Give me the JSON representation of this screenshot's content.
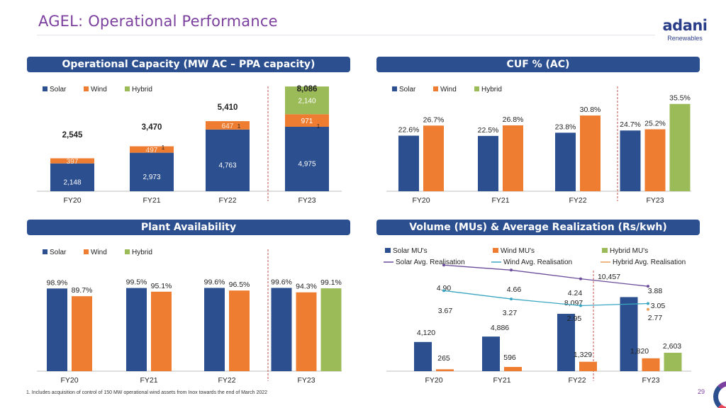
{
  "page": {
    "title": "AGEL: Operational Performance",
    "logo_brand": "adani",
    "logo_sub": "Renewables",
    "footnote": "1. Includes acquisition of control of 150 MW operational wind assets from Inox towards the end of March 2022",
    "page_number": "29"
  },
  "colors": {
    "solar": "#2c4f8f",
    "wind": "#ee7d31",
    "hybrid": "#9bbb59",
    "header": "#2c4f8f",
    "title": "#7b3f9e"
  },
  "legend_labels": [
    "Solar",
    "Wind",
    "Hybrid"
  ],
  "chart_data": [
    {
      "id": "capacity",
      "header": "Operational Capacity (MW AC – PPA capacity)",
      "type": "bar",
      "stacked": true,
      "categories": [
        "FY20",
        "FY21",
        "FY22",
        "FY23"
      ],
      "series": [
        {
          "name": "Solar",
          "values": [
            2148,
            2973,
            4763,
            4975
          ],
          "labels": [
            "2,148",
            "2,973",
            "4,763",
            "4,975"
          ]
        },
        {
          "name": "Wind",
          "values": [
            397,
            497,
            647,
            971
          ],
          "labels": [
            "397",
            "497",
            "647",
            "971"
          ]
        },
        {
          "name": "Hybrid",
          "values": [
            0,
            0,
            0,
            2140
          ],
          "labels": [
            "",
            "",
            "",
            "2,140"
          ]
        }
      ],
      "totals": [
        "2,545",
        "3,470",
        "5,410",
        "8,086"
      ],
      "footnote_markers": [
        "",
        "1",
        "1",
        "1"
      ],
      "legend": "top-left"
    },
    {
      "id": "cuf",
      "header": "CUF % (AC)",
      "type": "bar",
      "categories": [
        "FY20",
        "FY21",
        "FY22",
        "FY23"
      ],
      "series": [
        {
          "name": "Solar",
          "values": [
            22.6,
            22.5,
            23.8,
            24.7
          ],
          "labels": [
            "22.6%",
            "22.5%",
            "23.8%",
            "24.7%"
          ]
        },
        {
          "name": "Wind",
          "values": [
            26.7,
            26.8,
            30.8,
            25.2
          ],
          "labels": [
            "26.7%",
            "26.8%",
            "30.8%",
            "25.2%"
          ]
        },
        {
          "name": "Hybrid",
          "values": [
            null,
            null,
            null,
            35.5
          ],
          "labels": [
            "",
            "",
            "",
            "35.5%"
          ]
        }
      ],
      "legend": "top-left"
    },
    {
      "id": "availability",
      "header": "Plant Availability",
      "type": "bar",
      "categories": [
        "FY20",
        "FY21",
        "FY22",
        "FY23"
      ],
      "series": [
        {
          "name": "Solar",
          "values": [
            98.9,
            99.5,
            99.6,
            99.6
          ],
          "labels": [
            "98.9%",
            "99.5%",
            "99.6%",
            "99.6%"
          ]
        },
        {
          "name": "Wind",
          "values": [
            89.7,
            95.1,
            96.5,
            94.3
          ],
          "labels": [
            "89.7%",
            "95.1%",
            "96.5%",
            "94.3%"
          ]
        },
        {
          "name": "Hybrid",
          "values": [
            null,
            null,
            null,
            99.1
          ],
          "labels": [
            "",
            "",
            "",
            "99.1%"
          ]
        }
      ],
      "legend": "top-left"
    },
    {
      "id": "volume",
      "header": "Volume (MUs) & Average Realization (Rs/kwh)",
      "type": "bar",
      "categories": [
        "FY20",
        "FY21",
        "FY22",
        "FY23"
      ],
      "series": [
        {
          "name": "Solar MU's",
          "values": [
            4120,
            4886,
            8097,
            10457
          ],
          "labels": [
            "4,120",
            "4,886",
            "8,097",
            "10,457"
          ]
        },
        {
          "name": "Wind MU's",
          "values": [
            265,
            596,
            1329,
            1820
          ],
          "labels": [
            "265",
            "596",
            "1,329",
            "1,820"
          ]
        },
        {
          "name": "Hybrid MU's",
          "values": [
            null,
            null,
            null,
            2603
          ],
          "labels": [
            "",
            "",
            "",
            "2,603"
          ]
        }
      ],
      "lines": [
        {
          "name": "Solar Avg. Realisation",
          "values": [
            4.9,
            4.66,
            4.24,
            3.88
          ],
          "labels": [
            "4.90",
            "4.66",
            "4.24",
            "3.88"
          ]
        },
        {
          "name": "Wind Avg. Realisation",
          "values": [
            3.67,
            3.27,
            2.95,
            3.05
          ],
          "labels": [
            "3.67",
            "3.27",
            "2.95",
            "3.05"
          ]
        },
        {
          "name": "Hybrid Avg. Realisation",
          "values": [
            null,
            null,
            null,
            2.77
          ],
          "labels": [
            "",
            "",
            "",
            "2.77"
          ]
        }
      ],
      "legend": "top"
    }
  ]
}
